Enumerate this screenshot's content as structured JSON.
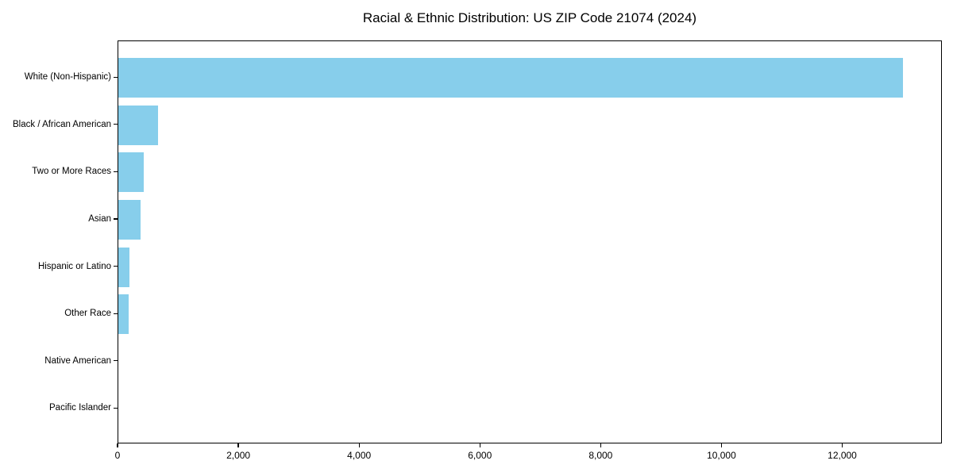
{
  "chart_data": {
    "type": "bar",
    "orientation": "horizontal",
    "title": "Racial & Ethnic Distribution: US ZIP Code 21074 (2024)",
    "categories": [
      "White (Non-Hispanic)",
      "Black / African American",
      "Two or More Races",
      "Asian",
      "Hispanic or Latino",
      "Other Race",
      "Native American",
      "Pacific Islander"
    ],
    "values": [
      12990,
      660,
      420,
      365,
      180,
      170,
      0,
      0
    ],
    "xlabel": "",
    "ylabel": "",
    "xlim": [
      0,
      13650
    ],
    "x_tick_values": [
      0,
      2000,
      4000,
      6000,
      8000,
      10000,
      12000
    ],
    "x_tick_labels": [
      "0",
      "2,000",
      "4,000",
      "6,000",
      "8,000",
      "10,000",
      "12,000"
    ],
    "bar_color": "#87CEEB",
    "axis_color": "#000000",
    "background_color": "#ffffff",
    "grid": false,
    "legend": false
  }
}
